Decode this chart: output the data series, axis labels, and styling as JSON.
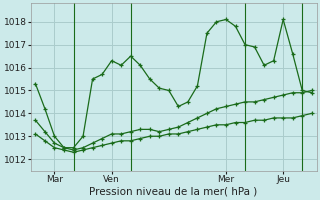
{
  "background_color": "#cceaea",
  "grid_color": "#aacccc",
  "line_color": "#1a6b1a",
  "xlabel": "Pression niveau de la mer( hPa )",
  "ylim": [
    1011.5,
    1018.8
  ],
  "yticks": [
    1012,
    1013,
    1014,
    1015,
    1016,
    1017,
    1018
  ],
  "day_labels": [
    "Mar",
    "Ven",
    "Mer",
    "Jeu"
  ],
  "day_positions": [
    2,
    8,
    20,
    26
  ],
  "vline_positions": [
    4,
    10,
    22,
    28
  ],
  "n_points": 30,
  "series1": [
    1015.3,
    1014.2,
    1013.0,
    1012.5,
    1012.5,
    1013.0,
    1015.5,
    1015.7,
    1016.3,
    1016.1,
    1016.5,
    1016.1,
    1015.5,
    1015.1,
    1015.0,
    1014.3,
    1014.5,
    1015.2,
    1017.5,
    1018.0,
    1018.1,
    1017.8,
    1017.0,
    1016.9,
    1016.1,
    1016.3,
    1018.1,
    1016.6,
    1015.0,
    1014.9
  ],
  "series2": [
    1013.7,
    1013.2,
    1012.7,
    1012.5,
    1012.4,
    1012.5,
    1012.7,
    1012.9,
    1013.1,
    1013.1,
    1013.2,
    1013.3,
    1013.3,
    1013.2,
    1013.3,
    1013.4,
    1013.6,
    1013.8,
    1014.0,
    1014.2,
    1014.3,
    1014.4,
    1014.5,
    1014.5,
    1014.6,
    1014.7,
    1014.8,
    1014.9,
    1014.9,
    1015.0
  ],
  "series3": [
    1013.1,
    1012.8,
    1012.5,
    1012.4,
    1012.3,
    1012.4,
    1012.5,
    1012.6,
    1012.7,
    1012.8,
    1012.8,
    1012.9,
    1013.0,
    1013.0,
    1013.1,
    1013.1,
    1013.2,
    1013.3,
    1013.4,
    1013.5,
    1013.5,
    1013.6,
    1013.6,
    1013.7,
    1013.7,
    1013.8,
    1013.8,
    1013.8,
    1013.9,
    1014.0
  ],
  "xlabel_fontsize": 7.5,
  "tick_fontsize": 6.5,
  "figsize": [
    3.2,
    2.0
  ],
  "dpi": 100
}
